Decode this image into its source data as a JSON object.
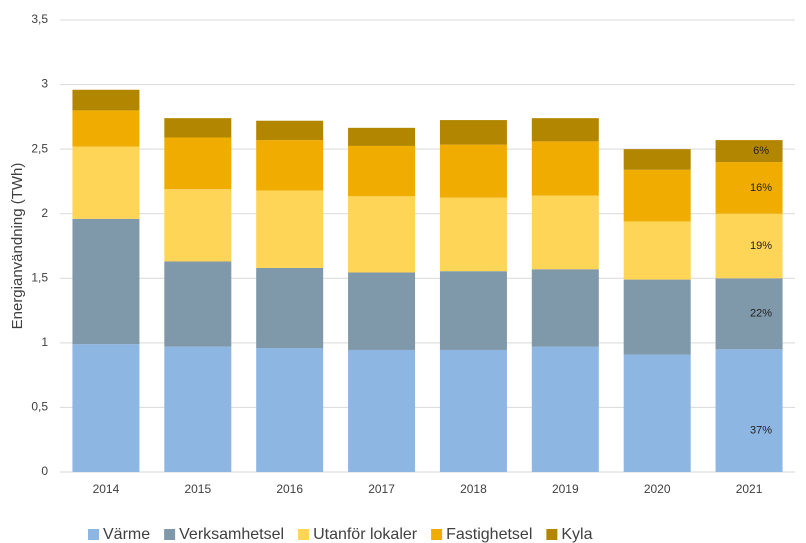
{
  "chart_data": {
    "type": "stacked_bar",
    "y_label": "Energianvändning (TWh)",
    "categories": [
      "2014",
      "2015",
      "2016",
      "2017",
      "2018",
      "2019",
      "2020",
      "2021"
    ],
    "series": [
      {
        "name": "Värme",
        "color": "#8db6e2",
        "values": [
          0.99,
          0.97,
          0.96,
          0.945,
          0.945,
          0.97,
          0.91,
          0.95
        ]
      },
      {
        "name": "Verksamhetsel",
        "color": "#7f99ab",
        "values": [
          0.97,
          0.66,
          0.62,
          0.6,
          0.61,
          0.6,
          0.58,
          0.55
        ]
      },
      {
        "name": "Utanför lokaler",
        "color": "#ffd557",
        "values": [
          0.56,
          0.56,
          0.6,
          0.59,
          0.57,
          0.57,
          0.45,
          0.5
        ]
      },
      {
        "name": "Fastighetsel",
        "color": "#f0ad00",
        "values": [
          0.28,
          0.4,
          0.39,
          0.39,
          0.41,
          0.42,
          0.4,
          0.4
        ]
      },
      {
        "name": "Kyla",
        "color": "#b38600",
        "values": [
          0.16,
          0.15,
          0.15,
          0.14,
          0.19,
          0.18,
          0.16,
          0.17
        ]
      }
    ],
    "annotations": [
      {
        "category": "2021",
        "series": "Värme",
        "text": "37%"
      },
      {
        "category": "2021",
        "series": "Verksamhetsel",
        "text": "22%"
      },
      {
        "category": "2021",
        "series": "Utanför lokaler",
        "text": "19%"
      },
      {
        "category": "2021",
        "series": "Fastighetsel",
        "text": "16%"
      },
      {
        "category": "2021",
        "series": "Kyla",
        "text": "6%"
      }
    ],
    "ylim": [
      0,
      3.5
    ],
    "yticks": [
      0,
      {
        "value": 0.5,
        "label": "0,5"
      },
      1,
      {
        "value": 1.5,
        "label": "1,5"
      },
      2,
      {
        "value": 2.5,
        "label": "2,5"
      },
      3,
      {
        "value": 3.5,
        "label": "3,5"
      }
    ],
    "grid": true,
    "legend": "bottom"
  }
}
